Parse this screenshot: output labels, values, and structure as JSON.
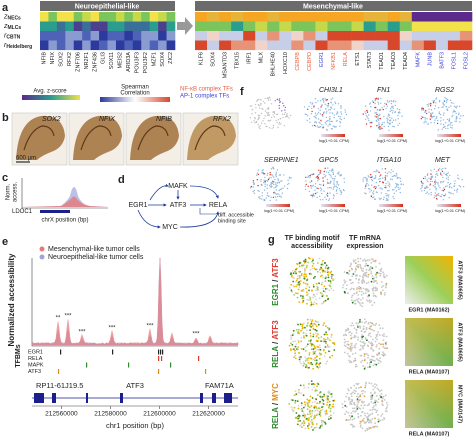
{
  "panel_labels": [
    "a",
    "b",
    "c",
    "d",
    "e",
    "f",
    "g"
  ],
  "a": {
    "left_title": "Neuroepithelial-like",
    "right_title": "Mesenchymal-like",
    "rows": [
      {
        "symbol": "z",
        "sub": "NECs"
      },
      {
        "symbol": "z",
        "sub": "MLCs"
      },
      {
        "symbol": "r",
        "sub": "CBTN"
      },
      {
        "symbol": "r",
        "sub": "Heidelberg"
      }
    ],
    "left_genes": [
      "NFIB",
      "NFIX",
      "SOX2",
      "RFX2",
      "ZNF706",
      "NR2F1",
      "ZNF436",
      "GLI3",
      "SOX11",
      "MEIS2",
      "ARID3A",
      "POU3F3",
      "POU3F2",
      "MZF1",
      "SOX4",
      "ZIC2"
    ],
    "right_genes": [
      {
        "name": "KLF6",
        "group": null
      },
      {
        "name": "SOX4",
        "group": null
      },
      {
        "name": "MSANTD3",
        "group": null
      },
      {
        "name": "TBX15",
        "group": null
      },
      {
        "name": "IRF1",
        "group": null
      },
      {
        "name": "MLX",
        "group": null
      },
      {
        "name": "BHLHE40",
        "group": null
      },
      {
        "name": "HOXC10",
        "group": null
      },
      {
        "name": "CEBPB",
        "group": 0
      },
      {
        "name": "CEBPD",
        "group": 0
      },
      {
        "name": "EGR1",
        "group": 1
      },
      {
        "name": "NFKB1",
        "group": 0
      },
      {
        "name": "RELA",
        "group": 0
      },
      {
        "name": "ETS1",
        "group": null
      },
      {
        "name": "STAT3",
        "group": null
      },
      {
        "name": "TEAD1",
        "group": null
      },
      {
        "name": "TEAD3",
        "group": null
      },
      {
        "name": "TEAD4",
        "group": null
      },
      {
        "name": "MAFK",
        "group": 1
      },
      {
        "name": "JUNB",
        "group": 1
      },
      {
        "name": "BATF3",
        "group": 1
      },
      {
        "name": "FOSL1",
        "group": 1
      },
      {
        "name": "FOSL2",
        "group": 1
      }
    ],
    "zscore_title": "Avg. z-score",
    "corr_title": [
      "Spearman",
      "Correlation"
    ],
    "groups": [
      {
        "name": "NF-κB complex TFs",
        "color": "#ef5b3c"
      },
      {
        "name": "AP-1 complex TFs",
        "color": "#3b40d8"
      }
    ]
  },
  "b": {
    "stains": [
      "SOX2",
      "NFIX",
      "NFIB",
      "RFX2"
    ],
    "scale": "600 µm"
  },
  "c": {
    "ylabel": [
      "Norm.",
      "access."
    ],
    "gene": "LDOC1",
    "xlabel": "chrX position (bp)"
  },
  "d": {
    "nodes": [
      "EGR1",
      "MAFK",
      "ATF3",
      "RELA",
      "MYC"
    ],
    "note": [
      "diff. accessible",
      "binding site"
    ]
  },
  "e": {
    "series": [
      {
        "name": "Mesenchymal-like tumor cells",
        "color": "#e8787a"
      },
      {
        "name": "Neuroepithelial-like tumor cells",
        "color": "#9fa4d6"
      }
    ],
    "ylabel": "Normalized accessibility",
    "stars": [
      "**",
      "***",
      "***",
      "***",
      "***",
      "***"
    ],
    "tfbm_title": "TFBMs",
    "tfbms": [
      {
        "name": "EGR1",
        "color": "#222222"
      },
      {
        "name": "RELA",
        "color": "#e0392f"
      },
      {
        "name": "MAPK",
        "color": "#2e8b2e"
      },
      {
        "name": "ATF3",
        "color": "#e08a1e"
      }
    ],
    "genes": [
      "RP11-61J19.5",
      "ATF3",
      "FAM71A"
    ],
    "xlim": [
      212548000,
      212632000
    ],
    "xticks": [
      212560000,
      212580000,
      212600000,
      212620000
    ],
    "xlabel": "chr1 position (bp)"
  },
  "f": {
    "genes": [
      "CHI3L1",
      "FN1",
      "RGS2",
      "SERPINE1",
      "GPC5",
      "ITGA10",
      "MET"
    ],
    "colorbar": "log(1+0.01 CPM)"
  },
  "g": {
    "col_titles": [
      [
        "TF binding motif",
        "accessibility"
      ],
      [
        "TF mRNA",
        "expression"
      ]
    ],
    "rows": [
      {
        "first": "EGR1",
        "second": "ATF3",
        "first_color": "#2e8b2e",
        "second_color": "#e0392f",
        "ylabel": "ATF3 (MA0605)",
        "xlabel": "EGR1 (MA0162)"
      },
      {
        "first": "RELA",
        "second": "ATF3",
        "first_color": "#2e8b2e",
        "second_color": "#e0392f",
        "ylabel": "ATF3 (MA0605)",
        "xlabel": "RELA (MA0107)"
      },
      {
        "first": "RELA",
        "second": "MYC",
        "first_color": "#2e8b2e",
        "second_color": "#e08a1e",
        "ylabel": "MYC (MA0147)",
        "xlabel": "RELA (MA0107)"
      }
    ],
    "separator": "/"
  }
}
